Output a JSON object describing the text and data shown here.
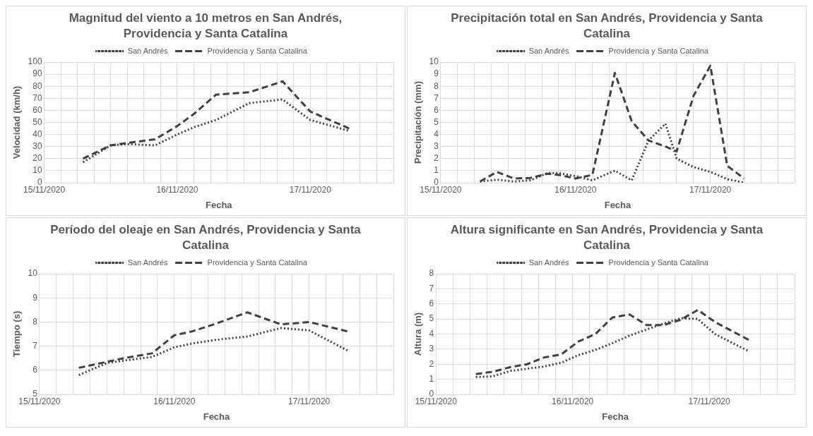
{
  "chart_data": [
    {
      "type": "line",
      "title": "Magnitud del viento a 10 metros en San Andrés, Providencia y Santa Catalina",
      "xlabel": "Fecha",
      "ylabel": "Velocidad (km/h)",
      "grid": true,
      "legend": "top",
      "x": [
        "2020-11-15T07:00",
        "2020-11-15T12:00",
        "2020-11-15T15:00",
        "2020-11-15T20:00",
        "2020-11-16T00:00",
        "2020-11-16T03:00",
        "2020-11-16T07:00",
        "2020-11-16T13:00",
        "2020-11-16T19:00",
        "2020-11-17T00:00",
        "2020-11-17T07:00"
      ],
      "series": [
        {
          "name": "San Andrés",
          "color": "#404040",
          "line_style": "dotted",
          "values": [
            17,
            31,
            32,
            31,
            40,
            46,
            52,
            66,
            69,
            52,
            43
          ]
        },
        {
          "name": "Providencia y Santa Catalina",
          "color": "#404040",
          "line_style": "dashed",
          "values": [
            20,
            31,
            33,
            36,
            47,
            57,
            73,
            75,
            84,
            59,
            45
          ]
        }
      ],
      "xlim": [
        "2020-11-15T00:00",
        "2020-11-17T15:00"
      ],
      "xticks": [
        {
          "value": "2020-11-15T00:00",
          "label": "15/11/2020"
        },
        {
          "value": "2020-11-15T03:00",
          "label": null
        },
        {
          "value": "2020-11-15T06:00",
          "label": null
        },
        {
          "value": "2020-11-15T09:00",
          "label": null
        },
        {
          "value": "2020-11-15T12:00",
          "label": null
        },
        {
          "value": "2020-11-15T15:00",
          "label": null
        },
        {
          "value": "2020-11-15T18:00",
          "label": null
        },
        {
          "value": "2020-11-15T21:00",
          "label": null
        },
        {
          "value": "2020-11-16T00:00",
          "label": "16/11/2020"
        },
        {
          "value": "2020-11-16T03:00",
          "label": null
        },
        {
          "value": "2020-11-16T06:00",
          "label": null
        },
        {
          "value": "2020-11-16T09:00",
          "label": null
        },
        {
          "value": "2020-11-16T12:00",
          "label": null
        },
        {
          "value": "2020-11-16T15:00",
          "label": null
        },
        {
          "value": "2020-11-16T18:00",
          "label": null
        },
        {
          "value": "2020-11-16T21:00",
          "label": null
        },
        {
          "value": "2020-11-17T00:00",
          "label": "17/11/2020"
        },
        {
          "value": "2020-11-17T03:00",
          "label": null
        },
        {
          "value": "2020-11-17T06:00",
          "label": null
        },
        {
          "value": "2020-11-17T09:00",
          "label": null
        },
        {
          "value": "2020-11-17T12:00",
          "label": null
        },
        {
          "value": "2020-11-17T15:00",
          "label": null
        }
      ],
      "ylim": [
        0,
        100
      ],
      "yticks": [
        0,
        10,
        20,
        30,
        40,
        50,
        60,
        70,
        80,
        90,
        100
      ]
    },
    {
      "type": "line",
      "title": "Precipitación total en San Andrés, Providencia y Santa Catalina",
      "xlabel": "Fecha",
      "ylabel": "Precipitación (mm)",
      "grid": true,
      "legend": "top",
      "x": [
        "2020-11-15T07:00",
        "2020-11-15T10:00",
        "2020-11-15T13:00",
        "2020-11-15T16:00",
        "2020-11-15T19:00",
        "2020-11-15T21:00",
        "2020-11-16T00:00",
        "2020-11-16T03:00",
        "2020-11-16T07:00",
        "2020-11-16T10:00",
        "2020-11-16T13:00",
        "2020-11-16T16:00",
        "2020-11-16T18:00",
        "2020-11-16T21:00",
        "2020-11-17T00:00",
        "2020-11-17T03:00",
        "2020-11-17T06:00"
      ],
      "series": [
        {
          "name": "San Andrés",
          "color": "#404040",
          "line_style": "dotted",
          "values": [
            0.1,
            0.25,
            0.1,
            0.2,
            0.8,
            0.8,
            0.55,
            0.2,
            1.0,
            0.2,
            3.5,
            4.9,
            2.0,
            1.3,
            0.9,
            0.3,
            0.0
          ]
        },
        {
          "name": "Providencia y Santa Catalina",
          "color": "#404040",
          "line_style": "dashed",
          "values": [
            0.1,
            0.9,
            0.35,
            0.4,
            0.75,
            0.65,
            0.35,
            0.65,
            9.1,
            5.1,
            3.5,
            3.0,
            2.6,
            7.2,
            9.7,
            1.4,
            0.35
          ]
        }
      ],
      "xlim": [
        "2020-11-15T00:00",
        "2020-11-17T15:00"
      ],
      "xticks": [
        {
          "value": "2020-11-15T00:00",
          "label": "15/11/2020"
        },
        {
          "value": "2020-11-15T03:00",
          "label": null
        },
        {
          "value": "2020-11-15T06:00",
          "label": null
        },
        {
          "value": "2020-11-15T09:00",
          "label": null
        },
        {
          "value": "2020-11-15T12:00",
          "label": null
        },
        {
          "value": "2020-11-15T15:00",
          "label": null
        },
        {
          "value": "2020-11-15T18:00",
          "label": null
        },
        {
          "value": "2020-11-15T21:00",
          "label": null
        },
        {
          "value": "2020-11-16T00:00",
          "label": "16/11/2020"
        },
        {
          "value": "2020-11-16T03:00",
          "label": null
        },
        {
          "value": "2020-11-16T06:00",
          "label": null
        },
        {
          "value": "2020-11-16T09:00",
          "label": null
        },
        {
          "value": "2020-11-16T12:00",
          "label": null
        },
        {
          "value": "2020-11-16T15:00",
          "label": null
        },
        {
          "value": "2020-11-16T18:00",
          "label": null
        },
        {
          "value": "2020-11-16T21:00",
          "label": null
        },
        {
          "value": "2020-11-17T00:00",
          "label": "17/11/2020"
        },
        {
          "value": "2020-11-17T03:00",
          "label": null
        },
        {
          "value": "2020-11-17T06:00",
          "label": null
        },
        {
          "value": "2020-11-17T09:00",
          "label": null
        },
        {
          "value": "2020-11-17T12:00",
          "label": null
        },
        {
          "value": "2020-11-17T15:00",
          "label": null
        }
      ],
      "ylim": [
        0,
        10
      ],
      "yticks": [
        0,
        1,
        2,
        3,
        4,
        5,
        6,
        7,
        8,
        9,
        10
      ]
    },
    {
      "type": "line",
      "title": "Período del oleaje en San Andrés, Providencia y Santa Catalina",
      "xlabel": "Fecha",
      "ylabel": "Tiempo (s)",
      "grid": true,
      "legend": "top",
      "x": [
        "2020-11-15T07:00",
        "2020-11-15T12:00",
        "2020-11-15T15:00",
        "2020-11-15T20:00",
        "2020-11-16T00:00",
        "2020-11-16T03:00",
        "2020-11-16T07:00",
        "2020-11-16T13:00",
        "2020-11-16T19:00",
        "2020-11-17T00:00",
        "2020-11-17T07:00"
      ],
      "series": [
        {
          "name": "San Andrés",
          "color": "#404040",
          "line_style": "dotted",
          "values": [
            5.8,
            6.3,
            6.4,
            6.55,
            6.95,
            7.1,
            7.25,
            7.4,
            7.75,
            7.65,
            6.8
          ]
        },
        {
          "name": "Providencia y Santa Catalina",
          "color": "#404040",
          "line_style": "dashed",
          "values": [
            6.1,
            6.35,
            6.5,
            6.7,
            7.45,
            7.6,
            7.9,
            8.4,
            7.9,
            8.0,
            7.6
          ]
        }
      ],
      "xlim": [
        "2020-11-15T00:00",
        "2020-11-17T15:00"
      ],
      "xticks": [
        {
          "value": "2020-11-15T00:00",
          "label": "15/11/2020"
        },
        {
          "value": "2020-11-15T03:00",
          "label": null
        },
        {
          "value": "2020-11-15T06:00",
          "label": null
        },
        {
          "value": "2020-11-15T09:00",
          "label": null
        },
        {
          "value": "2020-11-15T12:00",
          "label": null
        },
        {
          "value": "2020-11-15T15:00",
          "label": null
        },
        {
          "value": "2020-11-15T18:00",
          "label": null
        },
        {
          "value": "2020-11-15T21:00",
          "label": null
        },
        {
          "value": "2020-11-16T00:00",
          "label": "16/11/2020"
        },
        {
          "value": "2020-11-16T03:00",
          "label": null
        },
        {
          "value": "2020-11-16T06:00",
          "label": null
        },
        {
          "value": "2020-11-16T09:00",
          "label": null
        },
        {
          "value": "2020-11-16T12:00",
          "label": null
        },
        {
          "value": "2020-11-16T15:00",
          "label": null
        },
        {
          "value": "2020-11-16T18:00",
          "label": null
        },
        {
          "value": "2020-11-16T21:00",
          "label": null
        },
        {
          "value": "2020-11-17T00:00",
          "label": "17/11/2020"
        },
        {
          "value": "2020-11-17T03:00",
          "label": null
        },
        {
          "value": "2020-11-17T06:00",
          "label": null
        },
        {
          "value": "2020-11-17T09:00",
          "label": null
        },
        {
          "value": "2020-11-17T12:00",
          "label": null
        },
        {
          "value": "2020-11-17T15:00",
          "label": null
        }
      ],
      "ylim": [
        5,
        10
      ],
      "yticks": [
        5,
        6,
        7,
        8,
        9,
        10
      ]
    },
    {
      "type": "line",
      "title": "Altura significante en San Andrés, Providencia y Santa Catalina",
      "xlabel": "Fecha",
      "ylabel": "Altura (m)",
      "grid": true,
      "legend": "top",
      "x": [
        "2020-11-15T07:00",
        "2020-11-15T10:00",
        "2020-11-15T13:00",
        "2020-11-15T16:00",
        "2020-11-15T19:00",
        "2020-11-15T22:00",
        "2020-11-16T01:00",
        "2020-11-16T04:00",
        "2020-11-16T07:00",
        "2020-11-16T10:00",
        "2020-11-16T13:00",
        "2020-11-16T16:00",
        "2020-11-16T19:00",
        "2020-11-16T22:00",
        "2020-11-17T01:00",
        "2020-11-17T07:00"
      ],
      "series": [
        {
          "name": "San Andrés",
          "color": "#404040",
          "line_style": "dotted",
          "values": [
            1.15,
            1.2,
            1.55,
            1.7,
            1.85,
            2.1,
            2.6,
            2.95,
            3.4,
            3.9,
            4.3,
            4.7,
            5.05,
            5.0,
            4.0,
            2.85
          ]
        },
        {
          "name": "Providencia y Santa Catalina",
          "color": "#404040",
          "line_style": "dashed",
          "values": [
            1.35,
            1.5,
            1.8,
            2.0,
            2.45,
            2.65,
            3.5,
            4.0,
            5.1,
            5.3,
            4.6,
            4.6,
            4.95,
            5.6,
            4.8,
            3.6
          ]
        }
      ],
      "xlim": [
        "2020-11-15T00:00",
        "2020-11-17T15:00"
      ],
      "xticks": [
        {
          "value": "2020-11-15T00:00",
          "label": "15/11/2020"
        },
        {
          "value": "2020-11-15T03:00",
          "label": null
        },
        {
          "value": "2020-11-15T06:00",
          "label": null
        },
        {
          "value": "2020-11-15T09:00",
          "label": null
        },
        {
          "value": "2020-11-15T12:00",
          "label": null
        },
        {
          "value": "2020-11-15T15:00",
          "label": null
        },
        {
          "value": "2020-11-15T18:00",
          "label": null
        },
        {
          "value": "2020-11-15T21:00",
          "label": null
        },
        {
          "value": "2020-11-16T00:00",
          "label": "16/11/2020"
        },
        {
          "value": "2020-11-16T03:00",
          "label": null
        },
        {
          "value": "2020-11-16T06:00",
          "label": null
        },
        {
          "value": "2020-11-16T09:00",
          "label": null
        },
        {
          "value": "2020-11-16T12:00",
          "label": null
        },
        {
          "value": "2020-11-16T15:00",
          "label": null
        },
        {
          "value": "2020-11-16T18:00",
          "label": null
        },
        {
          "value": "2020-11-16T21:00",
          "label": null
        },
        {
          "value": "2020-11-17T00:00",
          "label": "17/11/2020"
        },
        {
          "value": "2020-11-17T03:00",
          "label": null
        },
        {
          "value": "2020-11-17T06:00",
          "label": null
        },
        {
          "value": "2020-11-17T09:00",
          "label": null
        },
        {
          "value": "2020-11-17T12:00",
          "label": null
        },
        {
          "value": "2020-11-17T15:00",
          "label": null
        }
      ],
      "ylim": [
        0,
        8
      ],
      "yticks": [
        0,
        1,
        2,
        3,
        4,
        5,
        6,
        7,
        8
      ]
    }
  ]
}
